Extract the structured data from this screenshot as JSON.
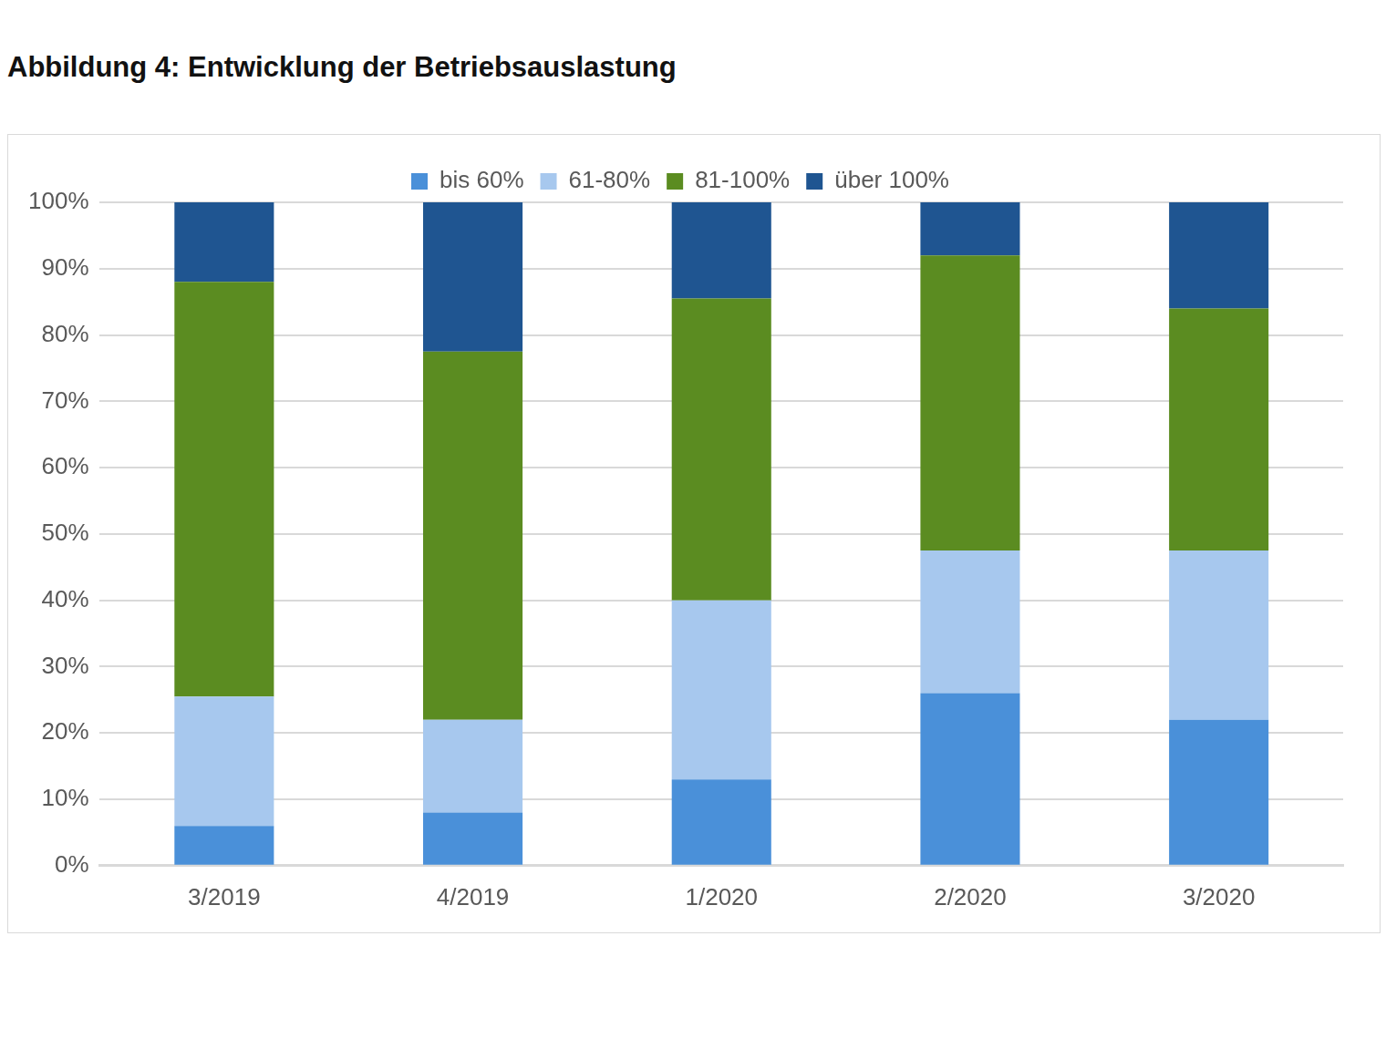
{
  "chart_data": {
    "type": "bar",
    "title": "Abbildung 4: Entwicklung der Betriebsauslastung",
    "categories": [
      "3/2019",
      "4/2019",
      "1/2020",
      "2/2020",
      "3/2020"
    ],
    "series": [
      {
        "name": "bis 60%",
        "color": "#4a90d9",
        "values": [
          6,
          8,
          13,
          26,
          22
        ]
      },
      {
        "name": "61-80%",
        "color": "#a7c8ee",
        "values": [
          19.5,
          14,
          27,
          21.5,
          25.5
        ]
      },
      {
        "name": "81-100%",
        "color": "#5b8c21",
        "values": [
          62.5,
          55.5,
          45.5,
          44.5,
          36.5
        ]
      },
      {
        "name": "über 100%",
        "color": "#1f5591",
        "values": [
          12,
          22.5,
          14.5,
          8,
          16
        ]
      }
    ],
    "ylim": [
      0,
      100
    ],
    "yticks": [
      {
        "value": 0,
        "label": "0%"
      },
      {
        "value": 10,
        "label": "10%"
      },
      {
        "value": 20,
        "label": "20%"
      },
      {
        "value": 30,
        "label": "30%"
      },
      {
        "value": 40,
        "label": "40%"
      },
      {
        "value": 50,
        "label": "50%"
      },
      {
        "value": 60,
        "label": "60%"
      },
      {
        "value": 70,
        "label": "70%"
      },
      {
        "value": 80,
        "label": "80%"
      },
      {
        "value": 90,
        "label": "90%"
      },
      {
        "value": 100,
        "label": "100%"
      }
    ],
    "stacked": true,
    "grid": true,
    "legend": "top"
  }
}
